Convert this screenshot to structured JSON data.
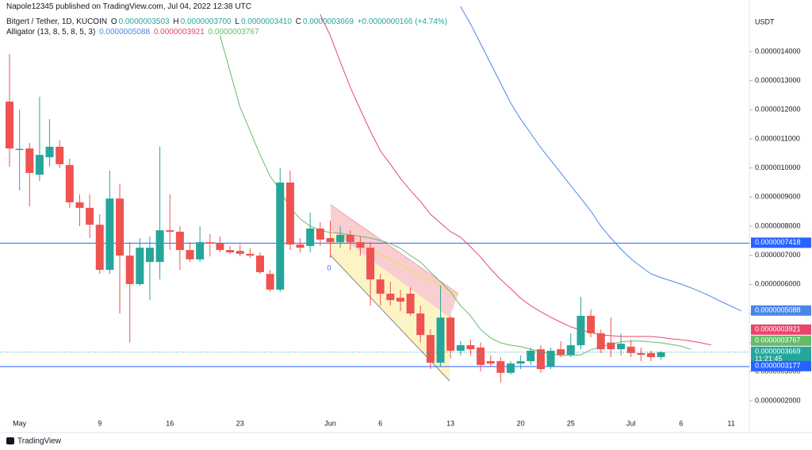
{
  "header": {
    "published": "Napole12345 published on TradingView.com, Jul 04, 2022 12:38 UTC",
    "brand": "TradingView"
  },
  "legend": {
    "symbol": "Bitgert / Tether, 1D, KUCOIN",
    "fields": [
      {
        "key": "O",
        "value": "0.0000003503"
      },
      {
        "key": "H",
        "value": "0.0000003700"
      },
      {
        "key": "L",
        "value": "0.0000003410"
      },
      {
        "key": "C",
        "value": "0.0000003669"
      }
    ],
    "change": "+0.0000000166 (+4.74%)",
    "indicator": "Alligator (13, 8, 5, 8, 5, 3)"
  },
  "annotations": [
    {
      "text": "0"
    }
  ],
  "chart_data": {
    "type": "candlestick",
    "y_axis_unit": "USDT",
    "categories": [
      null,
      "May",
      null,
      null,
      null,
      null,
      null,
      null,
      null,
      "9",
      null,
      null,
      null,
      null,
      null,
      null,
      "16",
      null,
      null,
      null,
      null,
      null,
      null,
      "23",
      null,
      null,
      null,
      null,
      null,
      null,
      null,
      null,
      "Jun",
      null,
      null,
      null,
      null,
      "6",
      null,
      null,
      null,
      null,
      null,
      null,
      "13",
      null,
      null,
      null,
      null,
      null,
      null,
      "20",
      null,
      null,
      null,
      null,
      "25",
      null,
      null,
      null,
      null,
      null,
      "Jul",
      null,
      null,
      null,
      null,
      "6",
      null,
      null,
      null,
      null,
      "11",
      null
    ],
    "ylim": [
      1.536e-07,
      1.5773e-06
    ],
    "yticks": [
      {
        "value": 2e-07,
        "label": "0.0000002000"
      },
      {
        "value": 3e-07,
        "label": "0.0000003000"
      },
      {
        "value": 4e-07,
        "label": "0.0000004000"
      },
      {
        "value": 5e-07,
        "label": "0.0000005000"
      },
      {
        "value": 6e-07,
        "label": "0.0000006000"
      },
      {
        "value": 7e-07,
        "label": "0.0000007000"
      },
      {
        "value": 8e-07,
        "label": "0.0000008000"
      },
      {
        "value": 9e-07,
        "label": "0.0000009000"
      },
      {
        "value": 1e-06,
        "label": "0.0000010000"
      },
      {
        "value": 1.1e-06,
        "label": "0.0000011000"
      },
      {
        "value": 1.2e-06,
        "label": "0.0000012000"
      },
      {
        "value": 1.3e-06,
        "label": "0.0000013000"
      },
      {
        "value": 1.4e-06,
        "label": "0.0000014000"
      }
    ],
    "up_color": "#26a69a",
    "down_color": "#ef5350",
    "candles": {
      "price_label": "0.0000003669",
      "countdown": "11:21:45",
      "color": "#26a69a",
      "open": [
        1.228e-06,
        1.062e-06,
        1.067e-06,
        9.77e-07,
        1.037e-06,
        1.073e-06,
        1.01e-06,
        8.82e-07,
        8.63e-07,
        8.05e-07,
        6.5e-07,
        8.95e-07,
        6.99e-07,
        6.01e-07,
        6.77e-07,
        6.77e-07,
        7.86e-07,
        7.81e-07,
        7.18e-07,
        6.86e-07,
        7.45e-07,
        7.4e-07,
        7.18e-07,
        7.15e-07,
        7.05e-07,
        6.99e-07,
        6.36e-07,
        5.82e-07,
        9.5e-07,
        7.37e-07,
        7.32e-07,
        7.92e-07,
        7.59e-07,
        7.45e-07,
        7.7e-07,
        7.45e-07,
        7.26e-07,
        6.17e-07,
        5.68e-07,
        5.54e-07,
        5.68e-07,
        5e-07,
        4.26e-07,
        3.31e-07,
        4.86e-07,
        3.72e-07,
        3.91e-07,
        3.83e-07,
        3.36e-07,
        3.36e-07,
        2.96e-07,
        3.28e-07,
        3.36e-07,
        3.77e-07,
        3.17e-07,
        3.77e-07,
        3.58e-07,
        3.91e-07,
        4.92e-07,
        4.32e-07,
        4e-07,
        3.77e-07,
        3.86e-07,
        3.64e-07,
        3.64e-07,
        3.503e-07,
        null,
        null,
        null,
        null,
        null,
        null,
        null,
        null
      ],
      "high": [
        1.392e-06,
        1.2e-06,
        1.086e-06,
        1.245e-06,
        1.168e-06,
        1.095e-06,
        1.032e-06,
        9.09e-07,
        9.09e-07,
        8.41e-07,
        9.91e-07,
        9.45e-07,
        7.45e-07,
        7.59e-07,
        7.65e-07,
        1.073e-06,
        9.09e-07,
        8e-07,
        7.45e-07,
        8e-07,
        7.73e-07,
        7.65e-07,
        7.32e-07,
        7.37e-07,
        7.24e-07,
        7.1e-07,
        6.5e-07,
        9.99e-07,
        9.91e-07,
        7.59e-07,
        8.46e-07,
        8.14e-07,
        8.19e-07,
        8e-07,
        7.86e-07,
        7.65e-07,
        7.45e-07,
        6.36e-07,
        6.09e-07,
        5.82e-07,
        5.9e-07,
        5.27e-07,
        4.45e-07,
        5.95e-07,
        4.92e-07,
        4.05e-07,
        4.1e-07,
        4e-07,
        3.56e-07,
        3.5e-07,
        3.36e-07,
        3.56e-07,
        3.83e-07,
        3.91e-07,
        3.83e-07,
        4.05e-07,
        4.32e-07,
        5.57e-07,
        5.14e-07,
        4.45e-07,
        4.86e-07,
        4.32e-07,
        4.1e-07,
        3.83e-07,
        3.72e-07,
        3.7e-07,
        null,
        null,
        null,
        null,
        null,
        null,
        null,
        null
      ],
      "low": [
        1.004e-06,
        9.23e-07,
        8.68e-07,
        9.55e-07,
        1.005e-06,
        1e-06,
        8.63e-07,
        8e-07,
        7.59e-07,
        6.36e-07,
        6.36e-07,
        5e-07,
        4e-07,
        5.95e-07,
        5.46e-07,
        6.17e-07,
        7.18e-07,
        6.5e-07,
        6.77e-07,
        6.77e-07,
        6.96e-07,
        7.1e-07,
        7.05e-07,
        6.96e-07,
        6.91e-07,
        6.36e-07,
        5.74e-07,
        5.74e-07,
        7.18e-07,
        7.1e-07,
        7.1e-07,
        7.32e-07,
        6.91e-07,
        7.26e-07,
        7.18e-07,
        6.99e-07,
        5.27e-07,
        5.27e-07,
        5.27e-07,
        5.08e-07,
        4.92e-07,
        4e-07,
        3.09e-07,
        3.17e-07,
        3.45e-07,
        3.56e-07,
        3.56e-07,
        3.01e-07,
        3.17e-07,
        2.63e-07,
        2.9e-07,
        3.09e-07,
        3.23e-07,
        2.96e-07,
        3.09e-07,
        3.5e-07,
        3.5e-07,
        3.77e-07,
        4.18e-07,
        3.64e-07,
        3.5e-07,
        3.56e-07,
        3.5e-07,
        3.36e-07,
        3.36e-07,
        3.41e-07,
        null,
        null,
        null,
        null,
        null,
        null,
        null,
        null
      ],
      "close": [
        1.067e-06,
        1.066e-06,
        9.83e-07,
        1.045e-06,
        1.073e-06,
        1.013e-06,
        8.82e-07,
        8.63e-07,
        8.05e-07,
        6.5e-07,
        8.95e-07,
        6.99e-07,
        6.01e-07,
        7.26e-07,
        7.26e-07,
        7.86e-07,
        7.81e-07,
        7.18e-07,
        6.86e-07,
        7.45e-07,
        7.4e-07,
        7.18e-07,
        7.1e-07,
        7.05e-07,
        6.99e-07,
        6.42e-07,
        5.82e-07,
        9.5e-07,
        7.37e-07,
        7.26e-07,
        7.92e-07,
        7.54e-07,
        7.45e-07,
        7.7e-07,
        7.45e-07,
        7.26e-07,
        6.17e-07,
        5.68e-07,
        5.46e-07,
        5.41e-07,
        5e-07,
        4.26e-07,
        3.31e-07,
        4.86e-07,
        3.72e-07,
        3.91e-07,
        3.77e-07,
        3.23e-07,
        3.28e-07,
        2.96e-07,
        3.28e-07,
        3.36e-07,
        3.72e-07,
        3.09e-07,
        3.72e-07,
        3.58e-07,
        3.91e-07,
        4.92e-07,
        4.32e-07,
        3.77e-07,
        3.77e-07,
        3.96e-07,
        3.64e-07,
        3.58e-07,
        3.5e-07,
        3.669e-07,
        null,
        null,
        null,
        null,
        null,
        null,
        null,
        null
      ]
    },
    "series": [
      {
        "name": "Jaw",
        "color": "#4a86e8",
        "price_label": "0.0000005088",
        "values": [
          null,
          null,
          null,
          null,
          null,
          null,
          null,
          null,
          null,
          null,
          null,
          null,
          null,
          null,
          null,
          null,
          null,
          null,
          null,
          null,
          null,
          null,
          null,
          null,
          null,
          null,
          null,
          null,
          null,
          null,
          null,
          null,
          null,
          null,
          null,
          null,
          null,
          null,
          null,
          null,
          null,
          null,
          null,
          null,
          null,
          1.555e-06,
          1.495e-06,
          1.427e-06,
          1.359e-06,
          1.291e-06,
          1.223e-06,
          1.168e-06,
          1.119e-06,
          1.07e-06,
          1.026e-06,
          9.83e-07,
          9.39e-07,
          8.96e-07,
          8.52e-07,
          8e-07,
          7.59e-07,
          7.21e-07,
          6.88e-07,
          6.61e-07,
          6.36e-07,
          6.23e-07,
          6.12e-07,
          6.01e-07,
          5.88e-07,
          5.74e-07,
          5.58e-07,
          5.41e-07,
          5.25e-07,
          5.088e-07
        ]
      },
      {
        "name": "Teeth",
        "color": "#e8476b",
        "price_label": "0.0000003921",
        "values": [
          null,
          null,
          null,
          null,
          null,
          null,
          null,
          null,
          null,
          null,
          null,
          null,
          null,
          null,
          null,
          null,
          null,
          null,
          null,
          null,
          null,
          null,
          null,
          null,
          null,
          null,
          null,
          null,
          null,
          null,
          null,
          1.528e-06,
          1.455e-06,
          1.365e-06,
          1.277e-06,
          1.201e-06,
          1.127e-06,
          1.059e-06,
          1.013e-06,
          9.64e-07,
          9.23e-07,
          8.85e-07,
          8.41e-07,
          8.11e-07,
          7.81e-07,
          7.62e-07,
          7.29e-07,
          6.94e-07,
          6.53e-07,
          6.17e-07,
          5.85e-07,
          5.52e-07,
          5.27e-07,
          5.06e-07,
          4.87e-07,
          4.7e-07,
          4.54e-07,
          4.43e-07,
          4.35e-07,
          4.26e-07,
          4.24e-07,
          4.21e-07,
          4.21e-07,
          4.21e-07,
          4.21e-07,
          4.18e-07,
          4.13e-07,
          4.1e-07,
          4.05e-07,
          3.99e-07,
          3.921e-07,
          null,
          null,
          null
        ]
      },
      {
        "name": "Lips",
        "color": "#66bb6a",
        "price_label": "0.0000003767",
        "values": [
          null,
          null,
          null,
          null,
          null,
          null,
          null,
          null,
          null,
          null,
          null,
          null,
          null,
          null,
          null,
          null,
          null,
          null,
          null,
          null,
          null,
          1.455e-06,
          1.332e-06,
          1.209e-06,
          1.127e-06,
          1.045e-06,
          9.72e-07,
          9.23e-07,
          8.63e-07,
          8.25e-07,
          8e-07,
          7.86e-07,
          7.78e-07,
          7.76e-07,
          7.7e-07,
          7.65e-07,
          7.59e-07,
          7.51e-07,
          7.4e-07,
          7.24e-07,
          6.99e-07,
          6.77e-07,
          6.42e-07,
          6.09e-07,
          5.74e-07,
          5.27e-07,
          4.92e-07,
          4.45e-07,
          4.16e-07,
          3.99e-07,
          3.91e-07,
          3.86e-07,
          3.77e-07,
          3.69e-07,
          3.61e-07,
          3.56e-07,
          3.56e-07,
          3.58e-07,
          3.75e-07,
          3.86e-07,
          3.94e-07,
          4.02e-07,
          4.05e-07,
          4.05e-07,
          4.02e-07,
          3.99e-07,
          3.94e-07,
          3.88e-07,
          3.767e-07,
          null,
          null,
          null,
          null,
          null
        ]
      }
    ],
    "hlines": [
      {
        "value": 7.418e-07,
        "label": "0.0000007418",
        "color": "#2962ff"
      },
      {
        "value": 3.177e-07,
        "label": "0.0000003177",
        "color": "#2962ff"
      }
    ]
  }
}
